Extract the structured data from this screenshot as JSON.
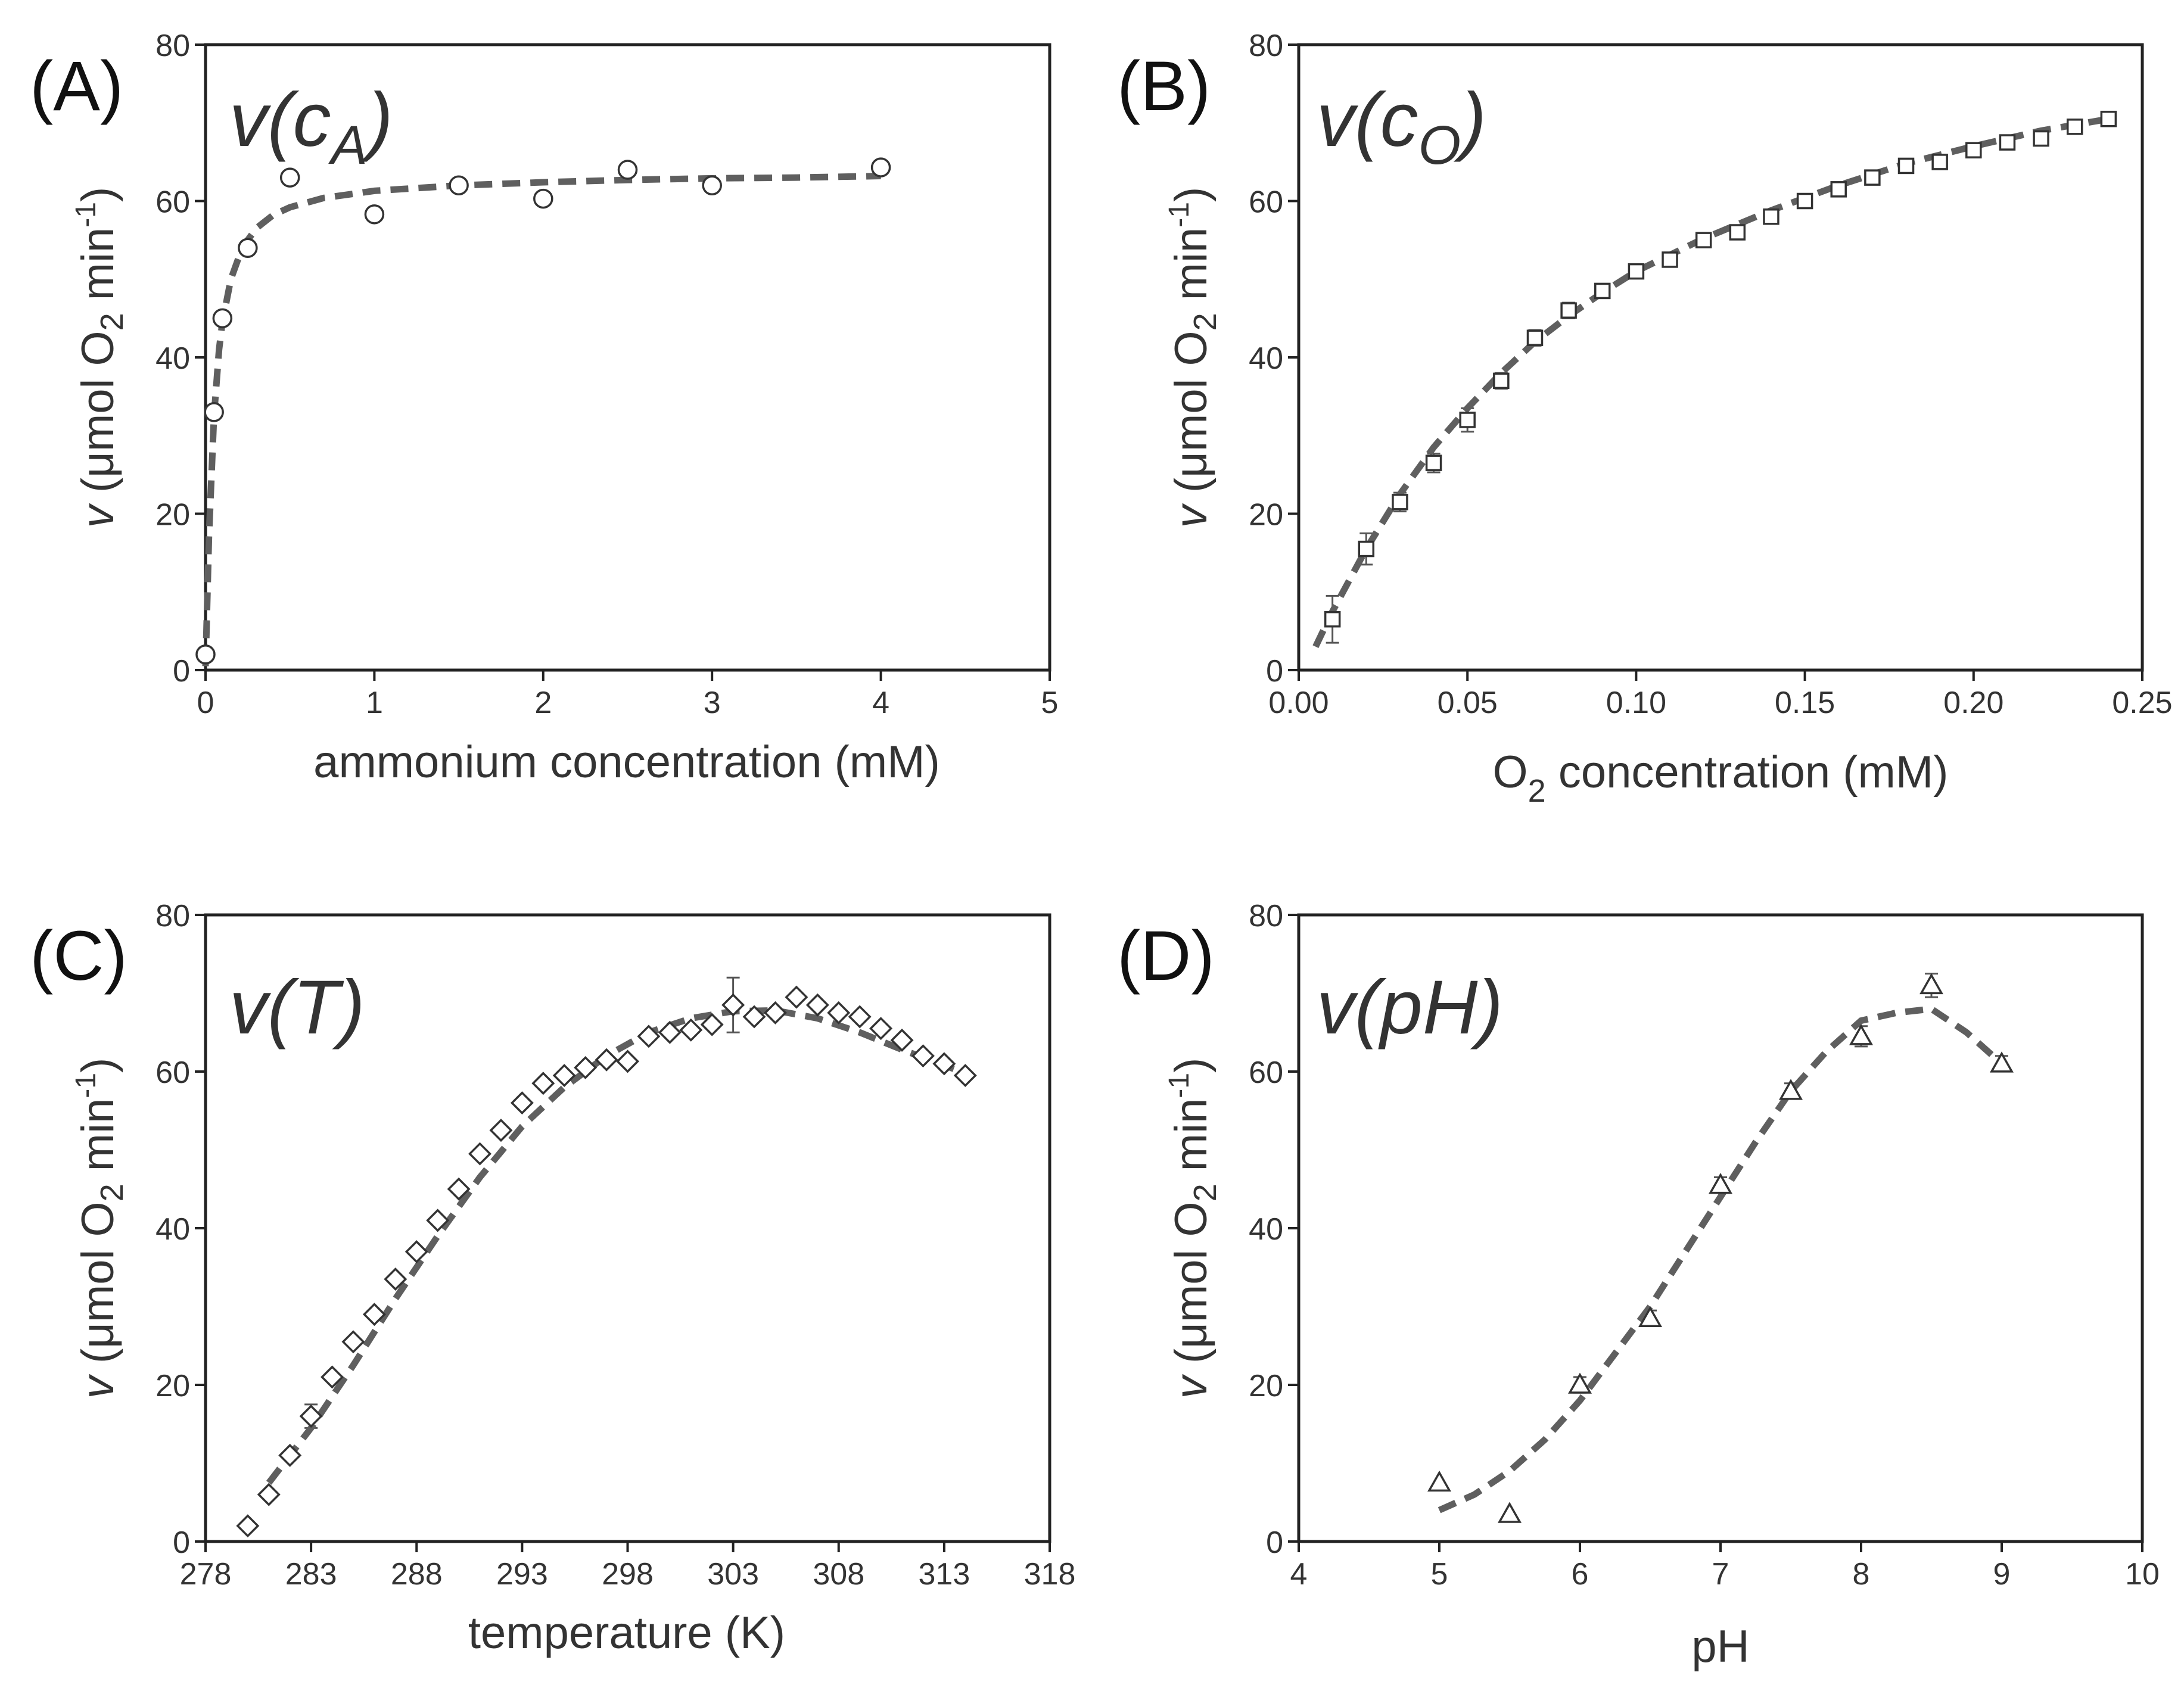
{
  "figure": {
    "y_axis_title": {
      "italic_v": "v",
      "open": " (μmol O",
      "sub": "2",
      "mid": " min",
      "sup": "-1",
      "close": ")"
    },
    "colors": {
      "fit_line": "#5f5f5f",
      "axes": "#222222",
      "text": "#333333"
    }
  },
  "chart_data": [
    {
      "id": "A",
      "type": "scatter",
      "panel_label": "(A)",
      "formula": {
        "base": "v(c",
        "sub": "A",
        "end": ")"
      },
      "marker": "circle",
      "xlabel": {
        "main": "ammonium concentration (mM)"
      },
      "xlim": [
        0,
        5
      ],
      "ylim": [
        0,
        80
      ],
      "xticks": [
        0,
        1,
        2,
        3,
        4,
        5
      ],
      "xtick_labels": [
        "0",
        "1",
        "2",
        "3",
        "4",
        "5"
      ],
      "yticks": [
        0,
        20,
        40,
        60,
        80
      ],
      "ytick_labels": [
        "0",
        "20",
        "40",
        "60",
        "80"
      ],
      "points": [
        {
          "x": 0.0,
          "y": 2
        },
        {
          "x": 0.05,
          "y": 33
        },
        {
          "x": 0.1,
          "y": 45
        },
        {
          "x": 0.25,
          "y": 54
        },
        {
          "x": 0.5,
          "y": 63
        },
        {
          "x": 1.0,
          "y": 58.3
        },
        {
          "x": 1.5,
          "y": 62
        },
        {
          "x": 2.0,
          "y": 60.3
        },
        {
          "x": 2.5,
          "y": 64
        },
        {
          "x": 3.0,
          "y": 62
        },
        {
          "x": 4.0,
          "y": 64.3
        }
      ],
      "fit": {
        "style": "dashed",
        "points": [
          [
            0.0,
            0.5
          ],
          [
            0.02,
            17
          ],
          [
            0.05,
            32.5
          ],
          [
            0.08,
            41
          ],
          [
            0.1,
            44.5
          ],
          [
            0.15,
            50
          ],
          [
            0.2,
            53
          ],
          [
            0.25,
            55
          ],
          [
            0.3,
            56.5
          ],
          [
            0.4,
            58.2
          ],
          [
            0.5,
            59.2
          ],
          [
            0.7,
            60.4
          ],
          [
            1.0,
            61.3
          ],
          [
            1.5,
            62
          ],
          [
            2.0,
            62.4
          ],
          [
            2.5,
            62.7
          ],
          [
            3.0,
            62.9
          ],
          [
            3.5,
            63
          ],
          [
            4.0,
            63.2
          ]
        ]
      }
    },
    {
      "id": "B",
      "type": "scatter",
      "panel_label": "(B)",
      "formula": {
        "base": "v(c",
        "sub": "O",
        "end": ")"
      },
      "marker": "square",
      "xlabel": {
        "main": "O",
        "sub": "2",
        "rest": " concentration (mM)"
      },
      "xlim": [
        0,
        0.25
      ],
      "ylim": [
        0,
        80
      ],
      "xticks": [
        0,
        0.05,
        0.1,
        0.15,
        0.2,
        0.25
      ],
      "xtick_labels": [
        "0.00",
        "0.05",
        "0.10",
        "0.15",
        "0.20",
        "0.25"
      ],
      "yticks": [
        0,
        20,
        40,
        60,
        80
      ],
      "ytick_labels": [
        "0",
        "20",
        "40",
        "60",
        "80"
      ],
      "points": [
        {
          "x": 0.01,
          "y": 6.5,
          "err": 3
        },
        {
          "x": 0.02,
          "y": 15.5,
          "err": 2
        },
        {
          "x": 0.03,
          "y": 21.5,
          "err": 1.2
        },
        {
          "x": 0.04,
          "y": 26.5,
          "err": 1.2
        },
        {
          "x": 0.05,
          "y": 32,
          "err": 1.5
        },
        {
          "x": 0.06,
          "y": 37,
          "err": 1
        },
        {
          "x": 0.07,
          "y": 42.5,
          "err": 1
        },
        {
          "x": 0.08,
          "y": 46,
          "err": 1
        },
        {
          "x": 0.09,
          "y": 48.5,
          "err": 0.8
        },
        {
          "x": 0.1,
          "y": 51,
          "err": 0.8
        },
        {
          "x": 0.11,
          "y": 52.5,
          "err": 0.8
        },
        {
          "x": 0.12,
          "y": 55,
          "err": 0.6
        },
        {
          "x": 0.13,
          "y": 56,
          "err": 0.6
        },
        {
          "x": 0.14,
          "y": 58,
          "err": 0.6
        },
        {
          "x": 0.15,
          "y": 60,
          "err": 0.6
        },
        {
          "x": 0.16,
          "y": 61.5,
          "err": 0.6
        },
        {
          "x": 0.17,
          "y": 63,
          "err": 0.5
        },
        {
          "x": 0.18,
          "y": 64.5,
          "err": 0.5
        },
        {
          "x": 0.19,
          "y": 65,
          "err": 0.5
        },
        {
          "x": 0.2,
          "y": 66.5,
          "err": 0.5
        },
        {
          "x": 0.21,
          "y": 67.5,
          "err": 0.5
        },
        {
          "x": 0.22,
          "y": 68,
          "err": 0.5
        },
        {
          "x": 0.23,
          "y": 69.5,
          "err": 0.5
        },
        {
          "x": 0.24,
          "y": 70.5,
          "err": 0.5
        }
      ],
      "fit": {
        "style": "dashed",
        "points": [
          [
            0.005,
            3
          ],
          [
            0.01,
            7.5
          ],
          [
            0.02,
            15.5
          ],
          [
            0.03,
            22.5
          ],
          [
            0.04,
            28.5
          ],
          [
            0.05,
            33.5
          ],
          [
            0.06,
            38
          ],
          [
            0.07,
            42
          ],
          [
            0.08,
            45.3
          ],
          [
            0.09,
            48.3
          ],
          [
            0.1,
            51
          ],
          [
            0.12,
            55.2
          ],
          [
            0.14,
            58.8
          ],
          [
            0.16,
            62
          ],
          [
            0.18,
            64.8
          ],
          [
            0.2,
            67
          ],
          [
            0.22,
            69
          ],
          [
            0.24,
            70.5
          ]
        ]
      }
    },
    {
      "id": "C",
      "type": "scatter",
      "panel_label": "(C)",
      "formula": {
        "base": "v(T)"
      },
      "marker": "diamond",
      "xlabel": {
        "main": "temperature (K)"
      },
      "xlim": [
        278,
        318
      ],
      "ylim": [
        0,
        80
      ],
      "xticks": [
        278,
        283,
        288,
        293,
        298,
        303,
        308,
        313,
        318
      ],
      "xtick_labels": [
        "278",
        "283",
        "288",
        "293",
        "298",
        "303",
        "308",
        "313",
        "318"
      ],
      "yticks": [
        0,
        20,
        40,
        60,
        80
      ],
      "ytick_labels": [
        "0",
        "20",
        "40",
        "60",
        "80"
      ],
      "points": [
        {
          "x": 280,
          "y": 2
        },
        {
          "x": 281,
          "y": 6
        },
        {
          "x": 282,
          "y": 11
        },
        {
          "x": 283,
          "y": 16,
          "err": 1.5
        },
        {
          "x": 284,
          "y": 21
        },
        {
          "x": 285,
          "y": 25.5
        },
        {
          "x": 286,
          "y": 29
        },
        {
          "x": 287,
          "y": 33.5
        },
        {
          "x": 288,
          "y": 37
        },
        {
          "x": 289,
          "y": 41
        },
        {
          "x": 290,
          "y": 45
        },
        {
          "x": 291,
          "y": 49.5
        },
        {
          "x": 292,
          "y": 52.5
        },
        {
          "x": 293,
          "y": 56
        },
        {
          "x": 294,
          "y": 58.5
        },
        {
          "x": 295,
          "y": 59.5
        },
        {
          "x": 296,
          "y": 60.5
        },
        {
          "x": 297,
          "y": 61.5
        },
        {
          "x": 298,
          "y": 61.3
        },
        {
          "x": 299,
          "y": 64.5
        },
        {
          "x": 300,
          "y": 65
        },
        {
          "x": 301,
          "y": 65.3
        },
        {
          "x": 302,
          "y": 66
        },
        {
          "x": 303,
          "y": 68.5,
          "err": 3.5
        },
        {
          "x": 304,
          "y": 67
        },
        {
          "x": 305,
          "y": 67.5
        },
        {
          "x": 306,
          "y": 69.5
        },
        {
          "x": 307,
          "y": 68.5
        },
        {
          "x": 308,
          "y": 67.5
        },
        {
          "x": 309,
          "y": 67
        },
        {
          "x": 310,
          "y": 65.5
        },
        {
          "x": 311,
          "y": 64
        },
        {
          "x": 312,
          "y": 62
        },
        {
          "x": 313,
          "y": 61
        },
        {
          "x": 314,
          "y": 59.5
        }
      ],
      "fit": {
        "style": "dashed",
        "points": [
          [
            281,
            7.5
          ],
          [
            283,
            14.5
          ],
          [
            285,
            22.5
          ],
          [
            287,
            31
          ],
          [
            289,
            39
          ],
          [
            291,
            46.5
          ],
          [
            293,
            53
          ],
          [
            295,
            58
          ],
          [
            297,
            62
          ],
          [
            299,
            65
          ],
          [
            301,
            66.8
          ],
          [
            303,
            67.7
          ],
          [
            305,
            67.8
          ],
          [
            307,
            66.8
          ],
          [
            309,
            65
          ],
          [
            311,
            62.8
          ],
          [
            313,
            60.8
          ],
          [
            314,
            59.8
          ]
        ]
      }
    },
    {
      "id": "D",
      "type": "scatter",
      "panel_label": "(D)",
      "formula": {
        "base": "v(pH)"
      },
      "marker": "triangle",
      "xlabel": {
        "main": "pH"
      },
      "xlim": [
        4,
        10
      ],
      "ylim": [
        0,
        80
      ],
      "xticks": [
        4,
        5,
        6,
        7,
        8,
        9,
        10
      ],
      "xtick_labels": [
        "4",
        "5",
        "6",
        "7",
        "8",
        "9",
        "10"
      ],
      "yticks": [
        0,
        20,
        40,
        60,
        80
      ],
      "ytick_labels": [
        "0",
        "20",
        "40",
        "60",
        "80"
      ],
      "points": [
        {
          "x": 5.0,
          "y": 7.5
        },
        {
          "x": 5.5,
          "y": 3.5
        },
        {
          "x": 6.0,
          "y": 20,
          "err": 1
        },
        {
          "x": 6.5,
          "y": 28.5,
          "err": 1
        },
        {
          "x": 7.0,
          "y": 45.5,
          "err": 1
        },
        {
          "x": 7.5,
          "y": 57.5,
          "err": 1
        },
        {
          "x": 8.0,
          "y": 64.5,
          "err": 1.3
        },
        {
          "x": 8.5,
          "y": 71,
          "err": 1.5
        },
        {
          "x": 9.0,
          "y": 61,
          "err": 1
        }
      ],
      "fit": {
        "style": "dashed",
        "points": [
          [
            5.0,
            4
          ],
          [
            5.25,
            6
          ],
          [
            5.5,
            9
          ],
          [
            5.75,
            13
          ],
          [
            6.0,
            18
          ],
          [
            6.25,
            24
          ],
          [
            6.5,
            30
          ],
          [
            6.75,
            37
          ],
          [
            7.0,
            44
          ],
          [
            7.25,
            51
          ],
          [
            7.5,
            57.5
          ],
          [
            7.75,
            62.5
          ],
          [
            8.0,
            66.5
          ],
          [
            8.25,
            67.5
          ],
          [
            8.5,
            68
          ],
          [
            8.75,
            65
          ],
          [
            9.0,
            61
          ]
        ]
      }
    }
  ]
}
